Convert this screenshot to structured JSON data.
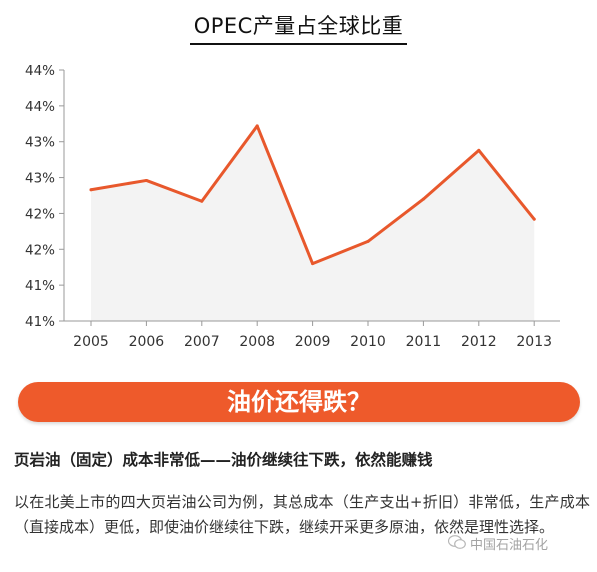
{
  "chart_data": {
    "type": "area",
    "title": "OPEC产量占全球比重",
    "categories": [
      "2005",
      "2006",
      "2007",
      "2008",
      "2009",
      "2010",
      "2011",
      "2012",
      "2013"
    ],
    "series": [
      {
        "values": [
          0.4283,
          0.4296,
          0.4267,
          0.4372,
          0.418,
          0.4211,
          0.427,
          0.4338,
          0.4242
        ]
      }
    ],
    "ylim": [
      0.41,
      0.445
    ],
    "y_ticks": [
      0.41,
      0.415,
      0.42,
      0.425,
      0.43,
      0.435,
      0.44,
      0.445
    ],
    "y_tick_labels": [
      "41%",
      "41%",
      "42%",
      "42%",
      "43%",
      "43%",
      "44%",
      "44%"
    ],
    "line_color": "#e8582c",
    "fill_color": "#f3f3f3",
    "grid": false
  },
  "banner": {
    "text": "油价还得跌？"
  },
  "subhead": {
    "text": "页岩油（固定）成本非常低——油价继续往下跌，依然能赚钱"
  },
  "paragraph": {
    "text": "以在北美上市的四大页岩油公司为例，其总成本（生产支出+折旧）非常低，生产成本（直接成本）更低，即使油价继续往下跌，继续开采更多原油，依然是理性选择。"
  },
  "watermark": {
    "icon": "wechat-icon",
    "text": "中国石油石化"
  }
}
